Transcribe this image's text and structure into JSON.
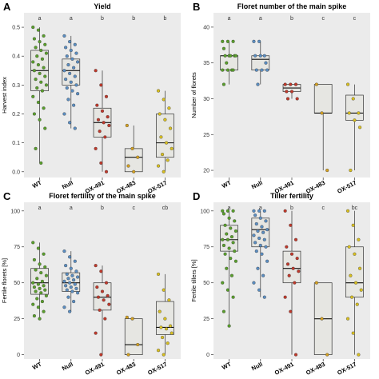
{
  "colors": {
    "panel_bg": "#ebebeb",
    "box_fill": "#e6e6e2",
    "box_stroke": "#333333",
    "groups": [
      "#5aa02c",
      "#5b8ec2",
      "#c0392b",
      "#d4a020",
      "#d9c020"
    ]
  },
  "chart_data": [
    {
      "letter": "A",
      "type": "box-dot",
      "title": "Yield",
      "ylabel": "Harvest index",
      "ylim": [
        -0.02,
        0.55
      ],
      "yticks": [
        0.0,
        0.1,
        0.2,
        0.3,
        0.4,
        0.5
      ],
      "ytick_labels": [
        "0.0",
        "0.1",
        "0.2",
        "0.3",
        "0.4",
        "0.5"
      ],
      "categories": [
        "WT",
        "Null",
        "OX-491",
        "OX-483",
        "OX-517"
      ],
      "significance": [
        "a",
        "a",
        "b",
        "b",
        "b"
      ],
      "boxes": [
        {
          "q1": 0.28,
          "median": 0.35,
          "q3": 0.42,
          "min": 0.03,
          "max": 0.5
        },
        {
          "q1": 0.3,
          "median": 0.35,
          "q3": 0.39,
          "min": 0.15,
          "max": 0.47
        },
        {
          "q1": 0.12,
          "median": 0.17,
          "q3": 0.22,
          "min": 0.0,
          "max": 0.35
        },
        {
          "q1": 0.0,
          "median": 0.05,
          "q3": 0.08,
          "min": 0.0,
          "max": 0.16
        },
        {
          "q1": 0.05,
          "median": 0.1,
          "q3": 0.2,
          "min": 0.0,
          "max": 0.28
        }
      ],
      "points": [
        [
          0.5,
          0.49,
          0.47,
          0.46,
          0.45,
          0.44,
          0.43,
          0.42,
          0.41,
          0.4,
          0.39,
          0.38,
          0.37,
          0.36,
          0.35,
          0.34,
          0.33,
          0.32,
          0.31,
          0.3,
          0.29,
          0.28,
          0.26,
          0.24,
          0.22,
          0.2,
          0.18,
          0.15,
          0.08,
          0.03
        ],
        [
          0.47,
          0.45,
          0.44,
          0.43,
          0.42,
          0.41,
          0.4,
          0.39,
          0.38,
          0.37,
          0.36,
          0.35,
          0.34,
          0.33,
          0.32,
          0.31,
          0.3,
          0.29,
          0.28,
          0.27,
          0.25,
          0.23,
          0.2,
          0.17,
          0.15
        ],
        [
          0.35,
          0.3,
          0.26,
          0.23,
          0.21,
          0.19,
          0.18,
          0.17,
          0.16,
          0.14,
          0.12,
          0.08,
          0.03,
          0.0
        ],
        [
          0.16,
          0.08,
          0.05,
          0.02,
          0.0
        ],
        [
          0.28,
          0.25,
          0.22,
          0.2,
          0.18,
          0.15,
          0.12,
          0.1,
          0.08,
          0.06,
          0.04,
          0.02,
          0.0
        ]
      ]
    },
    {
      "letter": "B",
      "type": "box-dot",
      "title": "Floret number of the main spike",
      "ylabel": "Number of florets",
      "ylim": [
        19,
        42
      ],
      "yticks": [
        20,
        25,
        30,
        35,
        40
      ],
      "ytick_labels": [
        "20",
        "25",
        "30",
        "35",
        "40"
      ],
      "categories": [
        "WT",
        "Null",
        "OX-491",
        "OX-483",
        "OX-517"
      ],
      "significance": [
        "a",
        "a",
        "b",
        "c",
        "c"
      ],
      "boxes": [
        {
          "q1": 34,
          "median": 36,
          "q3": 36,
          "min": 32,
          "max": 38
        },
        {
          "q1": 34,
          "median": 35.5,
          "q3": 36,
          "min": 32,
          "max": 38
        },
        {
          "q1": 31,
          "median": 31.5,
          "q3": 32,
          "min": 30,
          "max": 32
        },
        {
          "q1": 28,
          "median": 28,
          "q3": 32,
          "min": 20,
          "max": 32
        },
        {
          "q1": 27,
          "median": 28,
          "q3": 30.5,
          "min": 20,
          "max": 32
        }
      ],
      "points": [
        [
          38,
          38,
          38,
          37,
          36,
          36,
          36,
          36,
          36,
          35,
          34,
          34,
          34,
          34,
          32
        ],
        [
          38,
          38,
          36,
          36,
          36,
          35,
          34,
          34,
          34,
          32
        ],
        [
          32,
          32,
          32,
          31,
          31,
          30,
          30
        ],
        [
          32,
          28,
          20
        ],
        [
          32,
          30,
          28,
          28,
          27,
          26,
          20
        ]
      ]
    },
    {
      "letter": "C",
      "type": "box-dot",
      "title": "Floret fertility of the main spike",
      "ylabel": "Fertile florets [%]",
      "ylim": [
        -3,
        106
      ],
      "yticks": [
        0,
        25,
        50,
        75,
        100
      ],
      "ytick_labels": [
        "0",
        "25",
        "50",
        "75",
        "100"
      ],
      "categories": [
        "WT",
        "Null",
        "OX-491",
        "OX-483",
        "OX-517"
      ],
      "significance": [
        "a",
        "a",
        "b",
        "c",
        "cb"
      ],
      "boxes": [
        {
          "q1": 42,
          "median": 50,
          "q3": 60,
          "min": 25,
          "max": 78
        },
        {
          "q1": 44,
          "median": 50,
          "q3": 57,
          "min": 30,
          "max": 72
        },
        {
          "q1": 31,
          "median": 40,
          "q3": 50,
          "min": 0,
          "max": 62
        },
        {
          "q1": 0,
          "median": 7,
          "q3": 25,
          "min": 0,
          "max": 26
        },
        {
          "q1": 14,
          "median": 19,
          "q3": 37,
          "min": 0,
          "max": 56
        }
      ],
      "points": [
        [
          78,
          74,
          70,
          66,
          63,
          61,
          59,
          57,
          55,
          53,
          51,
          50,
          49,
          48,
          47,
          46,
          45,
          44,
          43,
          41,
          39,
          37,
          35,
          33,
          30,
          27,
          25
        ],
        [
          72,
          68,
          65,
          62,
          60,
          58,
          56,
          55,
          54,
          53,
          52,
          51,
          50,
          49,
          48,
          47,
          46,
          45,
          44,
          43,
          40,
          37,
          33,
          30
        ],
        [
          62,
          58,
          50,
          47,
          44,
          41,
          40,
          38,
          35,
          31,
          25,
          15,
          0
        ],
        [
          26,
          25,
          7,
          0
        ],
        [
          56,
          45,
          38,
          30,
          25,
          20,
          19,
          18,
          15,
          12,
          8,
          3,
          0
        ]
      ]
    },
    {
      "letter": "D",
      "type": "box-dot",
      "title": "Tiller fertility",
      "ylabel": "Fertile tillers [%]",
      "ylim": [
        -3,
        106
      ],
      "yticks": [
        0,
        25,
        50,
        75,
        100
      ],
      "ytick_labels": [
        "0",
        "25",
        "50",
        "75",
        "100"
      ],
      "categories": [
        "WT",
        "Null",
        "OX-491",
        "OX-483",
        "OX-517"
      ],
      "significance": [
        "a",
        "a",
        "b",
        "c",
        "bc"
      ],
      "boxes": [
        {
          "q1": 72,
          "median": 80,
          "q3": 90,
          "min": 20,
          "max": 100
        },
        {
          "q1": 75,
          "median": 87,
          "q3": 95,
          "min": 40,
          "max": 100
        },
        {
          "q1": 50,
          "median": 60,
          "q3": 72,
          "min": 0,
          "max": 100
        },
        {
          "q1": 0,
          "median": 25,
          "q3": 50,
          "min": 0,
          "max": 50
        },
        {
          "q1": 40,
          "median": 50,
          "q3": 75,
          "min": 0,
          "max": 100
        }
      ],
      "points": [
        [
          100,
          100,
          100,
          98,
          95,
          93,
          90,
          88,
          86,
          84,
          82,
          80,
          80,
          78,
          76,
          74,
          72,
          70,
          67,
          65,
          60,
          55,
          50,
          45,
          40,
          30,
          20
        ],
        [
          100,
          100,
          100,
          97,
          95,
          93,
          91,
          89,
          87,
          86,
          85,
          83,
          81,
          80,
          78,
          76,
          75,
          72,
          70,
          65,
          60,
          55,
          50,
          45,
          40
        ],
        [
          100,
          90,
          80,
          75,
          70,
          67,
          63,
          60,
          58,
          55,
          50,
          40,
          30,
          0
        ],
        [
          50,
          25,
          0
        ],
        [
          100,
          90,
          80,
          75,
          70,
          60,
          55,
          50,
          45,
          40,
          35,
          25,
          15,
          0
        ]
      ]
    }
  ]
}
